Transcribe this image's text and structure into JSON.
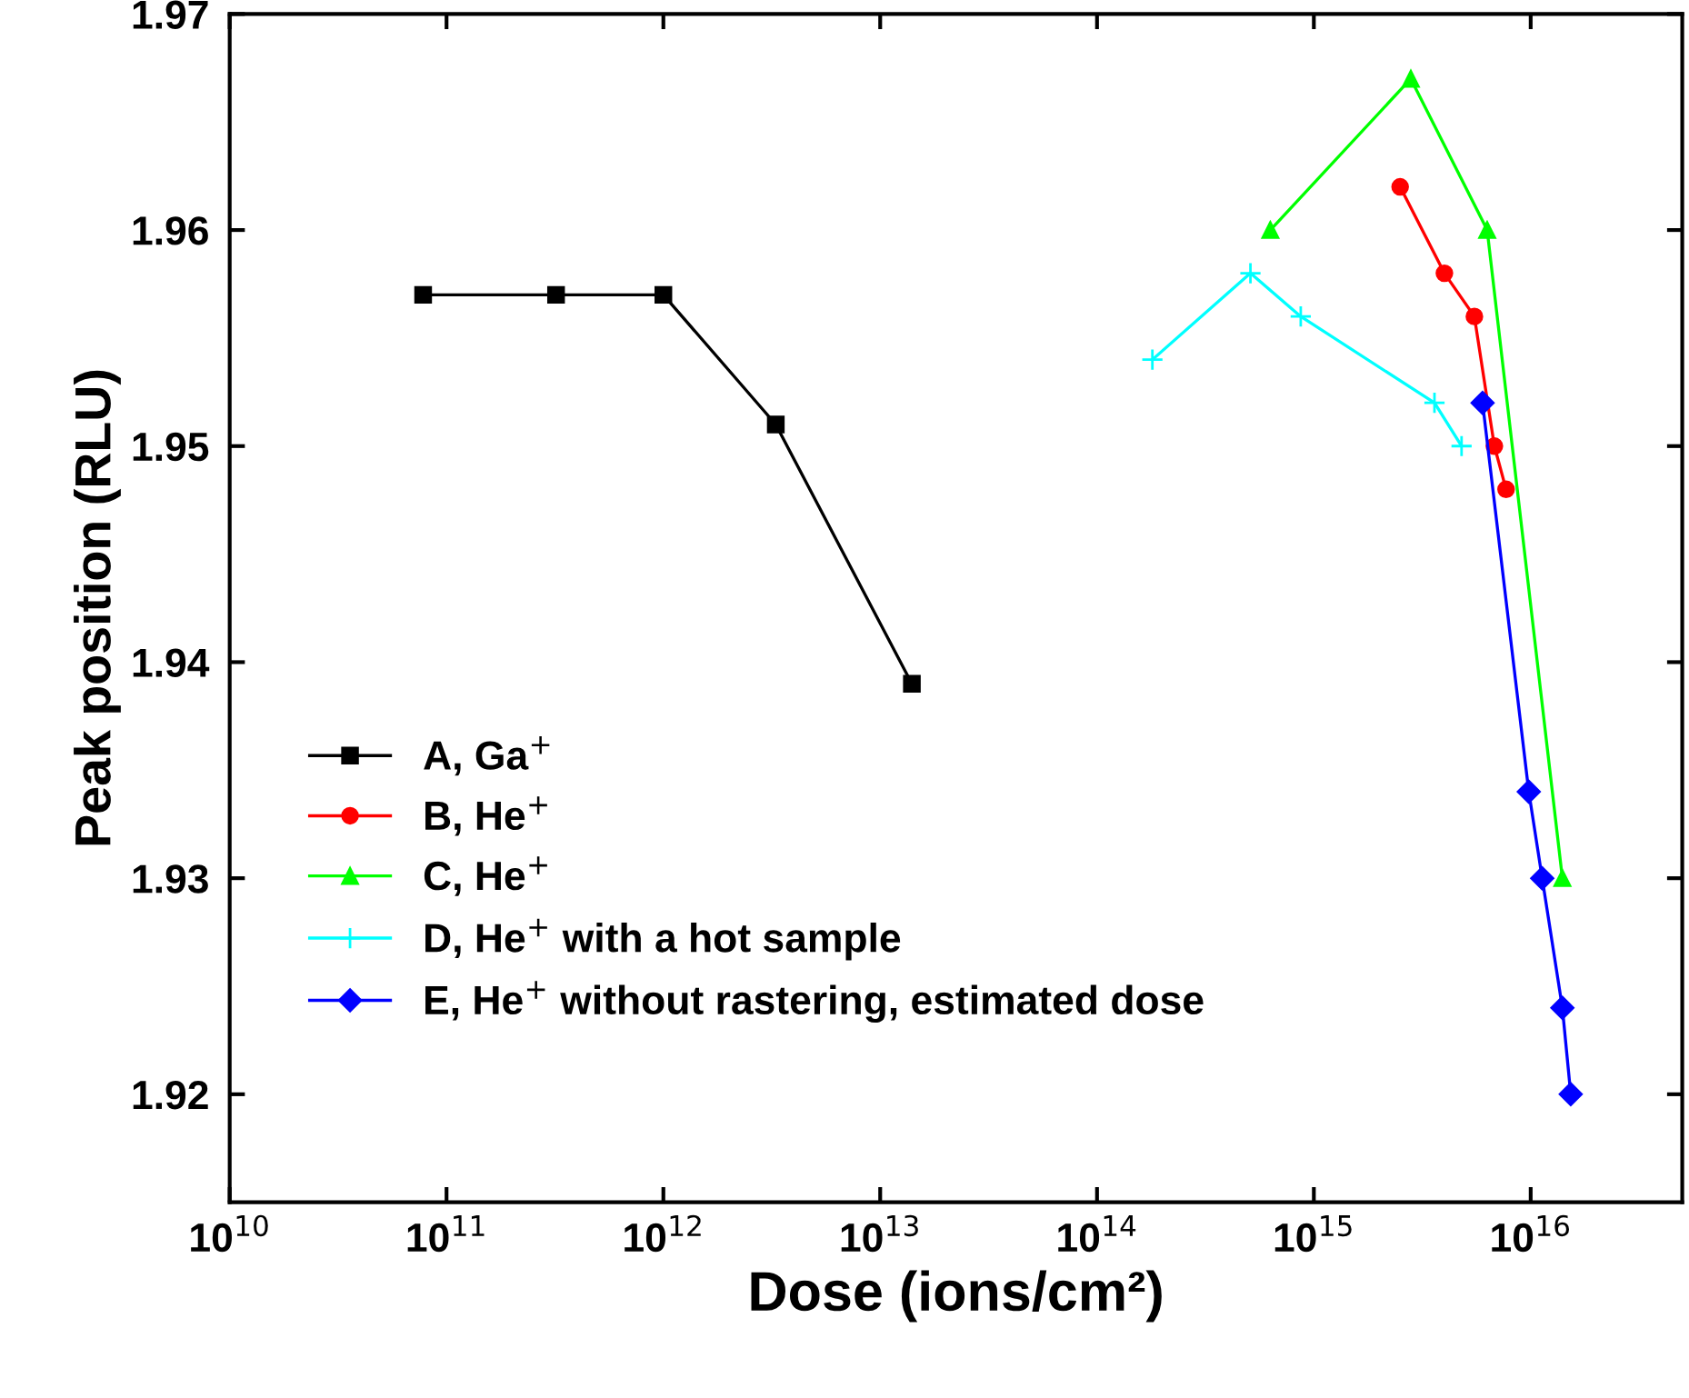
{
  "chart_data": {
    "type": "line",
    "xlabel": "Dose (ions/cm²)",
    "ylabel": "Peak position (RLU)",
    "log": "x",
    "xlim": [
      10000000000.0,
      5e+16
    ],
    "ylim": [
      1.915,
      1.97
    ],
    "xticks": [
      {
        "value": 10000000000.0,
        "label": "10$^{10}$"
      },
      {
        "value": 100000000000.0,
        "label": "10$^{11}$"
      },
      {
        "value": 1000000000000.0,
        "label": "10$^{12}$"
      },
      {
        "value": 10000000000000.0,
        "label": "10$^{13}$"
      },
      {
        "value": 100000000000000.0,
        "label": "10$^{14}$"
      },
      {
        "value": 1000000000000000.0,
        "label": "10$^{15}$"
      },
      {
        "value": 1e+16,
        "label": "10$^{16}$"
      }
    ],
    "yticks": [
      1.92,
      1.93,
      1.94,
      1.95,
      1.96,
      1.97
    ],
    "grid": false,
    "legend": "lower left",
    "line_style": "solid",
    "series": [
      {
        "name": "A, Ga$^{+}$",
        "color": "#000000",
        "marker": "square",
        "x": [
          78000000000.0,
          320000000000.0,
          1000000000000.0,
          3300000000000.0,
          14000000000000.0
        ],
        "values": [
          1.957,
          1.957,
          1.957,
          1.951,
          1.939
        ]
      },
      {
        "name": "B, He$^{+}$",
        "color": "#ff0000",
        "marker": "circle",
        "x": [
          2500000000000000.0,
          4000000000000000.0,
          5500000000000000.0,
          6800000000000000.0,
          7700000000000000.0
        ],
        "values": [
          1.962,
          1.958,
          1.956,
          1.95,
          1.948
        ]
      },
      {
        "name": "C, He$^{+}$",
        "color": "#00ff00",
        "marker": "triangle",
        "x": [
          630000000000000.0,
          2800000000000000.0,
          6300000000000000.0,
          1.4e+16
        ],
        "values": [
          1.96,
          1.967,
          1.96,
          1.93
        ]
      },
      {
        "name": "D, He$^{+}$ with a hot sample",
        "color": "#00ffff",
        "marker": "cross",
        "x": [
          180000000000000.0,
          510000000000000.0,
          870000000000000.0,
          3600000000000000.0,
          4800000000000000.0
        ],
        "values": [
          1.954,
          1.958,
          1.956,
          1.952,
          1.95
        ]
      },
      {
        "name": "E, He$^{+}$ without rastering, estimated dose",
        "color": "#0000ff",
        "marker": "diamond",
        "x": [
          6000000000000000.0,
          9800000000000000.0,
          1.13e+16,
          1.4e+16,
          1.53e+16
        ],
        "values": [
          1.952,
          1.934,
          1.93,
          1.924,
          1.92
        ]
      }
    ]
  }
}
